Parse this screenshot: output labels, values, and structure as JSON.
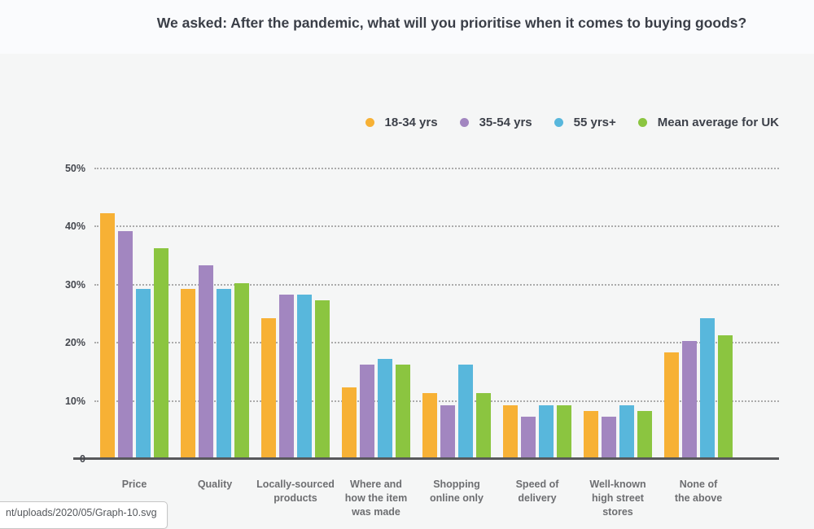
{
  "page": {
    "title": "We asked: After the pandemic, what will you prioritise when it comes to buying goods?",
    "status_tooltip": "nt/uploads/2020/05/Graph-10.svg"
  },
  "colors": {
    "background_top": "#fafbfd",
    "background_main": "#f5f6f6",
    "baseline": "#58595b",
    "gridline": "#ababab",
    "title_text": "#3a3e47",
    "category_text": "#6d6e71"
  },
  "chart_data": {
    "type": "bar",
    "title": "We asked: After the pandemic, what will you prioritise when it comes to buying goods?",
    "categories": [
      "Price",
      "Quality",
      "Locally-sourced products",
      "Where and how the item was made",
      "Shopping online only",
      "Speed of delivery",
      "Well-known high street stores",
      "None of the above"
    ],
    "category_labels_multiline": [
      "Price",
      "Quality",
      "Locally-sourced\nproducts",
      "Where and\nhow the item\nwas made",
      "Shopping\nonline only",
      "Speed of\ndelivery",
      "Well-known\nhigh street\nstores",
      "None of\nthe above"
    ],
    "series": [
      {
        "name": "18-34 yrs",
        "color": "#F7B135",
        "values": [
          42,
          29,
          24,
          12,
          11,
          9,
          8,
          18
        ]
      },
      {
        "name": "35-54 yrs",
        "color": "#A286C0",
        "values": [
          39,
          33,
          28,
          16,
          9,
          7,
          7,
          20
        ]
      },
      {
        "name": "55 yrs+",
        "color": "#58B7DC",
        "values": [
          29,
          29,
          28,
          17,
          16,
          9,
          9,
          24
        ]
      },
      {
        "name": "Mean average for UK",
        "color": "#8BC540",
        "values": [
          36,
          30,
          27,
          16,
          11,
          9,
          8,
          21
        ]
      }
    ],
    "xlabel": "",
    "ylabel": "",
    "ylim": [
      0,
      50
    ],
    "y_ticks": [
      {
        "label": "50%",
        "value": 50
      },
      {
        "label": "40%",
        "value": 40
      },
      {
        "label": "30%",
        "value": 30
      },
      {
        "label": "20%",
        "value": 20
      },
      {
        "label": "10%",
        "value": 10
      },
      {
        "label": "0",
        "value": 0
      }
    ],
    "grid": "horizontal-dotted",
    "legend_position": "top-right"
  }
}
